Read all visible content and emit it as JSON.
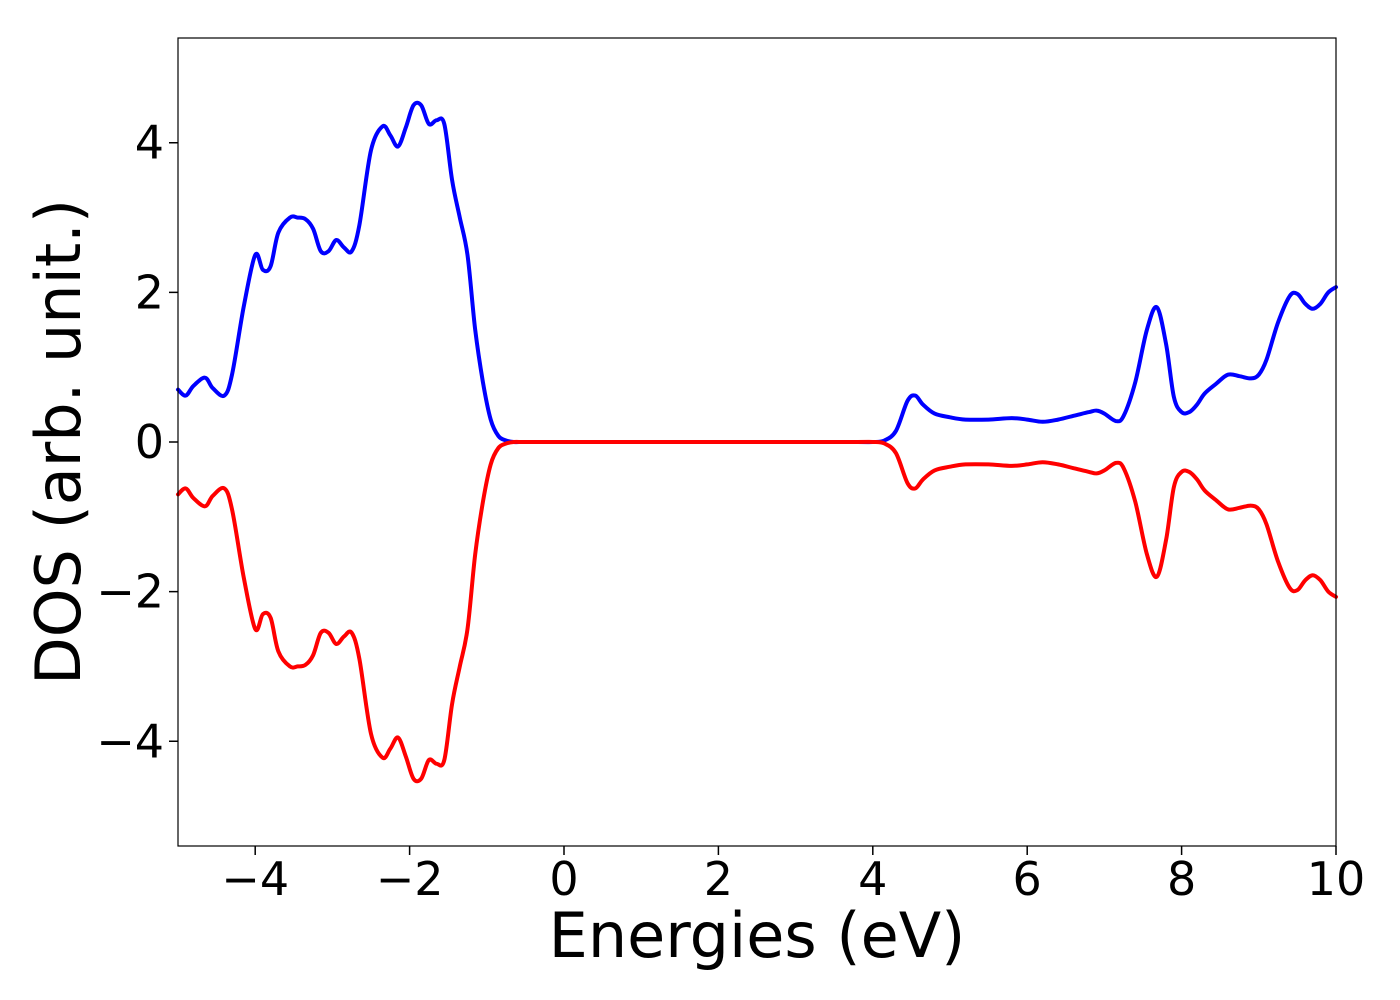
{
  "chart_data": {
    "type": "line",
    "title": "",
    "xlabel": "Energies (eV)",
    "ylabel": "DOS (arb. unit.)",
    "xlim": [
      -5,
      10
    ],
    "ylim": [
      -5.4,
      5.4
    ],
    "x_ticks": [
      -4,
      -2,
      0,
      2,
      4,
      6,
      8,
      10
    ],
    "x_tick_labels": [
      "−4",
      "−2",
      "0",
      "2",
      "4",
      "6",
      "8",
      "10"
    ],
    "y_ticks": [
      -4,
      -2,
      0,
      2,
      4
    ],
    "y_tick_labels": [
      "−4",
      "−2",
      "0",
      "2",
      "4"
    ],
    "grid": false,
    "legend": false,
    "series": [
      {
        "color": "#0000ff",
        "x": [
          -5.0,
          -4.9,
          -4.8,
          -4.65,
          -4.55,
          -4.4,
          -4.3,
          -4.15,
          -4.0,
          -3.9,
          -3.8,
          -3.7,
          -3.55,
          -3.45,
          -3.35,
          -3.25,
          -3.15,
          -3.05,
          -2.95,
          -2.85,
          -2.75,
          -2.65,
          -2.5,
          -2.35,
          -2.25,
          -2.15,
          -2.05,
          -1.95,
          -1.85,
          -1.75,
          -1.65,
          -1.55,
          -1.45,
          -1.35,
          -1.25,
          -1.15,
          -1.05,
          -0.95,
          -0.85,
          -0.75,
          -0.65,
          -0.55,
          -0.45,
          -0.3,
          0,
          1,
          2,
          3,
          3.8,
          4.0,
          4.15,
          4.3,
          4.45,
          4.55,
          4.65,
          4.8,
          5.0,
          5.2,
          5.5,
          5.8,
          6.0,
          6.2,
          6.4,
          6.6,
          6.8,
          6.9,
          7.0,
          7.15,
          7.25,
          7.4,
          7.55,
          7.68,
          7.8,
          7.9,
          8.0,
          8.1,
          8.2,
          8.3,
          8.45,
          8.6,
          8.75,
          8.9,
          9.0,
          9.1,
          9.25,
          9.4,
          9.5,
          9.6,
          9.7,
          9.8,
          9.9,
          10.0
        ],
        "y": [
          0.7,
          0.62,
          0.75,
          0.86,
          0.72,
          0.62,
          0.9,
          1.8,
          2.5,
          2.3,
          2.35,
          2.8,
          3.0,
          3.0,
          2.98,
          2.85,
          2.55,
          2.55,
          2.7,
          2.6,
          2.55,
          2.9,
          3.9,
          4.22,
          4.1,
          3.95,
          4.2,
          4.5,
          4.5,
          4.25,
          4.3,
          4.25,
          3.5,
          3.0,
          2.5,
          1.5,
          0.8,
          0.3,
          0.08,
          0.02,
          0.0,
          0.0,
          0.0,
          0.0,
          0.0,
          0.0,
          0.0,
          0.0,
          0.0,
          0.0,
          0.02,
          0.15,
          0.55,
          0.62,
          0.5,
          0.38,
          0.33,
          0.3,
          0.3,
          0.32,
          0.3,
          0.27,
          0.3,
          0.35,
          0.4,
          0.42,
          0.38,
          0.28,
          0.35,
          0.8,
          1.5,
          1.8,
          1.3,
          0.6,
          0.4,
          0.4,
          0.5,
          0.65,
          0.78,
          0.9,
          0.88,
          0.85,
          0.9,
          1.1,
          1.6,
          1.95,
          1.98,
          1.85,
          1.78,
          1.85,
          2.0,
          2.07
        ]
      },
      {
        "color": "#ff0000",
        "x": [
          -5.0,
          -4.9,
          -4.8,
          -4.65,
          -4.55,
          -4.4,
          -4.3,
          -4.15,
          -4.0,
          -3.9,
          -3.8,
          -3.7,
          -3.55,
          -3.45,
          -3.35,
          -3.25,
          -3.15,
          -3.05,
          -2.95,
          -2.85,
          -2.75,
          -2.65,
          -2.5,
          -2.35,
          -2.25,
          -2.15,
          -2.05,
          -1.95,
          -1.85,
          -1.75,
          -1.65,
          -1.55,
          -1.45,
          -1.35,
          -1.25,
          -1.15,
          -1.05,
          -0.95,
          -0.85,
          -0.75,
          -0.65,
          -0.55,
          -0.45,
          -0.3,
          0,
          1,
          2,
          3,
          3.8,
          4.0,
          4.15,
          4.3,
          4.45,
          4.55,
          4.65,
          4.8,
          5.0,
          5.2,
          5.5,
          5.8,
          6.0,
          6.2,
          6.4,
          6.6,
          6.8,
          6.9,
          7.0,
          7.15,
          7.25,
          7.4,
          7.55,
          7.68,
          7.8,
          7.9,
          8.0,
          8.1,
          8.2,
          8.3,
          8.45,
          8.6,
          8.75,
          8.9,
          9.0,
          9.1,
          9.25,
          9.4,
          9.5,
          9.6,
          9.7,
          9.8,
          9.9,
          10.0
        ],
        "y": [
          -0.7,
          -0.62,
          -0.75,
          -0.86,
          -0.72,
          -0.62,
          -0.9,
          -1.8,
          -2.5,
          -2.3,
          -2.35,
          -2.8,
          -3.0,
          -3.0,
          -2.98,
          -2.85,
          -2.55,
          -2.55,
          -2.7,
          -2.6,
          -2.55,
          -2.9,
          -3.9,
          -4.22,
          -4.1,
          -3.95,
          -4.2,
          -4.5,
          -4.5,
          -4.25,
          -4.3,
          -4.25,
          -3.5,
          -3.0,
          -2.5,
          -1.5,
          -0.8,
          -0.3,
          -0.08,
          -0.02,
          0.0,
          0.0,
          0.0,
          0.0,
          0.0,
          0.0,
          0.0,
          0.0,
          0.0,
          0.0,
          -0.02,
          -0.15,
          -0.55,
          -0.62,
          -0.5,
          -0.38,
          -0.33,
          -0.3,
          -0.3,
          -0.32,
          -0.3,
          -0.27,
          -0.3,
          -0.35,
          -0.4,
          -0.42,
          -0.38,
          -0.28,
          -0.35,
          -0.8,
          -1.5,
          -1.8,
          -1.3,
          -0.6,
          -0.4,
          -0.4,
          -0.5,
          -0.65,
          -0.78,
          -0.9,
          -0.88,
          -0.85,
          -0.9,
          -1.1,
          -1.6,
          -1.95,
          -1.98,
          -1.85,
          -1.78,
          -1.85,
          -2.0,
          -2.07
        ]
      }
    ]
  }
}
